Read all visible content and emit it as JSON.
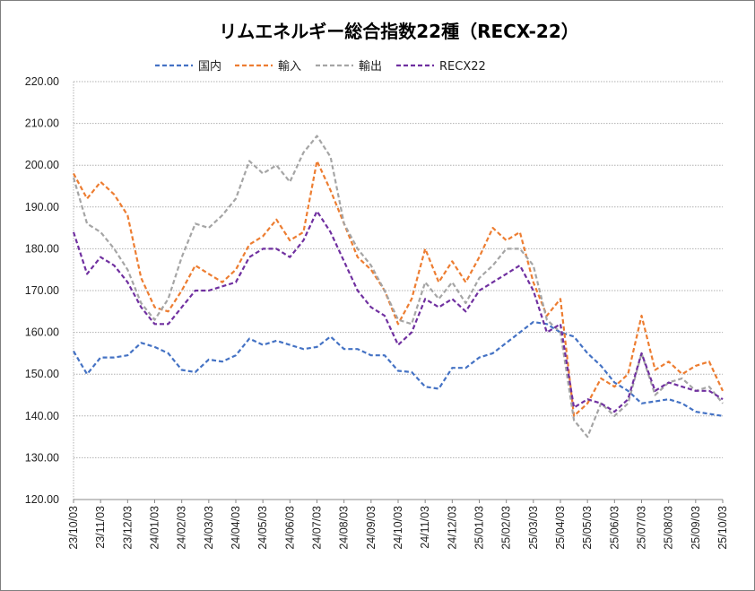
{
  "chart_data": {
    "type": "line",
    "title": "リムエネルギー総合指数22種（RECX-22）",
    "xlabel": "",
    "ylabel": "",
    "ylim": [
      120,
      220
    ],
    "yticks": [
      "120.00",
      "130.00",
      "140.00",
      "150.00",
      "160.00",
      "170.00",
      "180.00",
      "190.00",
      "200.00",
      "210.00",
      "220.00"
    ],
    "xtick_labels": [
      "23/10/03",
      "23/11/03",
      "23/12/03",
      "24/01/03",
      "24/02/03",
      "24/03/03",
      "24/04/03",
      "24/05/03",
      "24/06/03",
      "24/07/03",
      "24/08/03",
      "24/09/03",
      "24/10/03",
      "24/11/03",
      "24/12/03",
      "25/01/03",
      "25/02/03",
      "25/03/03",
      "25/04/03",
      "25/05/03",
      "25/06/03",
      "25/07/03",
      "25/08/03",
      "25/09/03",
      "25/10/03"
    ],
    "x_unit": "months since 23/10/03",
    "x": [
      0,
      0.5,
      1,
      1.5,
      2,
      2.5,
      3,
      3.5,
      4,
      4.5,
      5,
      5.5,
      6,
      6.5,
      7,
      7.5,
      8,
      8.5,
      9,
      9.5,
      10,
      10.5,
      11,
      11.5,
      12,
      12.5,
      13,
      13.5,
      14,
      14.5,
      15,
      15.5,
      16,
      16.5,
      17,
      17.5,
      18,
      18.5,
      19,
      19.5,
      20,
      20.5,
      21,
      21.5,
      22,
      22.5,
      23,
      23.5,
      24
    ],
    "grid": true,
    "legend_position": "top",
    "series": [
      {
        "name": "国内",
        "color": "#4472C4",
        "values": [
          155.5,
          150,
          154,
          154,
          154.5,
          157.5,
          156.5,
          155,
          151,
          150.5,
          153.5,
          153,
          154.5,
          158.5,
          157,
          158,
          157,
          156,
          156.5,
          159,
          156,
          156,
          154.5,
          154.5,
          150.8,
          150.5,
          147,
          146.5,
          151.5,
          151.5,
          154,
          155,
          157.5,
          160,
          162.5,
          162,
          160,
          159,
          155,
          152,
          148,
          146,
          143,
          143.5,
          144,
          143,
          141,
          140.5,
          140
        ]
      },
      {
        "name": "輸入",
        "color": "#ED7D31",
        "values": [
          198,
          192,
          196,
          193,
          188,
          173,
          166,
          165,
          170,
          176,
          174,
          172,
          175,
          181,
          183,
          187,
          182,
          184,
          201,
          194,
          186,
          178,
          175,
          170,
          162,
          168,
          180,
          172,
          177,
          172,
          178,
          185,
          182,
          184,
          172,
          164,
          168,
          140,
          143,
          149,
          147,
          150,
          164,
          151,
          153,
          150,
          152,
          153,
          146
        ]
      },
      {
        "name": "輸出",
        "color": "#A5A5A5",
        "values": [
          197,
          186,
          184,
          180,
          175,
          167,
          163,
          168,
          178,
          186,
          185,
          188,
          192,
          201,
          198,
          200,
          196,
          203,
          207,
          202,
          186,
          180,
          176,
          170,
          163,
          162,
          172,
          168,
          172,
          167,
          173,
          176,
          180,
          180,
          176,
          163,
          160,
          139,
          135,
          143,
          140,
          143,
          155,
          145,
          148,
          149,
          146,
          147,
          143
        ]
      },
      {
        "name": "RECX22",
        "color": "#7030A0",
        "values": [
          184,
          174,
          178,
          176,
          172,
          166,
          162,
          162,
          166,
          170,
          170,
          171,
          172,
          178,
          180,
          180,
          178,
          182,
          189,
          184,
          177,
          170,
          166,
          164,
          157,
          160,
          168,
          166,
          168,
          165,
          170,
          172,
          174,
          176,
          170,
          160,
          162,
          142,
          144,
          143,
          141,
          144,
          155,
          146,
          148,
          147,
          146,
          146,
          144
        ]
      }
    ]
  }
}
